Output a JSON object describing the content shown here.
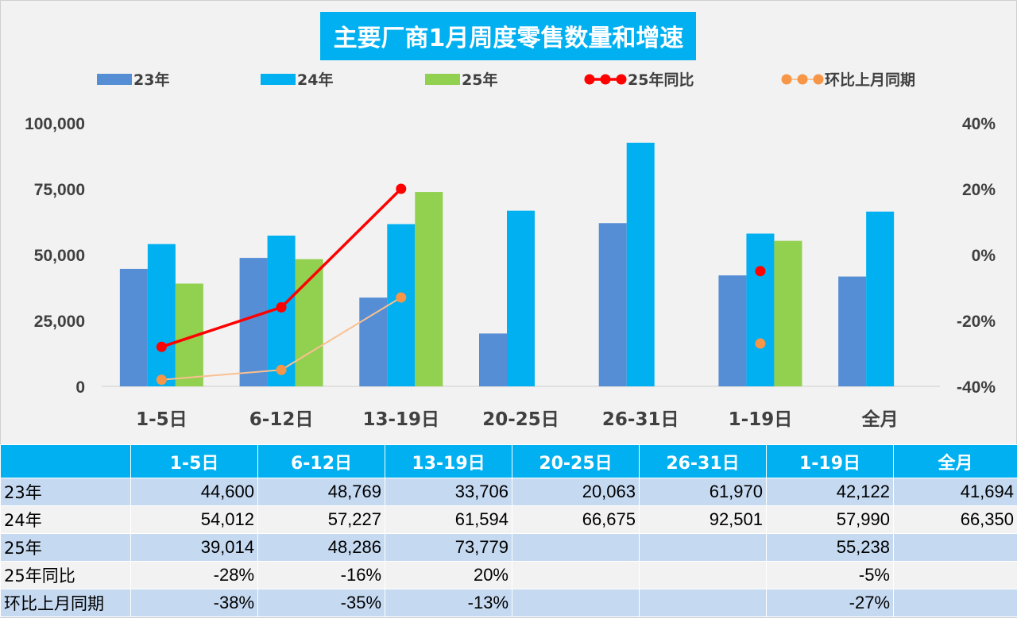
{
  "chart_data": {
    "type": "bar",
    "title": "主要厂商1月周度零售数量和增速",
    "categories": [
      "1-5日",
      "6-12日",
      "13-19日",
      "20-25日",
      "26-31日",
      "1-19日",
      "全月"
    ],
    "series": [
      {
        "name": "23年",
        "kind": "bar",
        "axis": "left",
        "color": "#558ed5",
        "values": [
          44600,
          48769,
          33706,
          20063,
          61970,
          42122,
          41694
        ]
      },
      {
        "name": "24年",
        "kind": "bar",
        "axis": "left",
        "color": "#00b0f0",
        "values": [
          54012,
          57227,
          61594,
          66675,
          92501,
          57990,
          66350
        ]
      },
      {
        "name": "25年",
        "kind": "bar",
        "axis": "left",
        "color": "#92d050",
        "values": [
          39014,
          48286,
          73779,
          null,
          null,
          55238,
          null
        ]
      },
      {
        "name": "25年同比",
        "kind": "line",
        "axis": "right",
        "color": "#ff0000",
        "values": [
          -28,
          -16,
          20,
          null,
          null,
          -5,
          null
        ]
      },
      {
        "name": "环比上月同期",
        "kind": "line",
        "axis": "right",
        "color": "#fac090",
        "markerColor": "#f79646",
        "values": [
          -38,
          -35,
          -13,
          null,
          null,
          -27,
          null
        ]
      }
    ],
    "ylim": [
      0,
      100000
    ],
    "yticks": [
      "100,000",
      "75,000",
      "50,000",
      "25,000",
      "0"
    ],
    "y2lim": [
      -40,
      40
    ],
    "y2ticks": [
      "40%",
      "20%",
      "0%",
      "-20%",
      "-40%"
    ],
    "legend": "top"
  },
  "table": {
    "header": [
      "",
      "1-5日",
      "6-12日",
      "13-19日",
      "20-25日",
      "26-31日",
      "1-19日",
      "全月"
    ],
    "rows": [
      {
        "label": "23年",
        "cells": [
          "44,600",
          "48,769",
          "33,706",
          "20,063",
          "61,970",
          "42,122",
          "41,694"
        ]
      },
      {
        "label": "24年",
        "cells": [
          "54,012",
          "57,227",
          "61,594",
          "66,675",
          "92,501",
          "57,990",
          "66,350"
        ]
      },
      {
        "label": "25年",
        "cells": [
          "39,014",
          "48,286",
          "73,779",
          "",
          "",
          "55,238",
          ""
        ]
      },
      {
        "label": "25年同比",
        "cells": [
          "-28%",
          "-16%",
          "20%",
          "",
          "",
          "-5%",
          ""
        ]
      },
      {
        "label": "环比上月同期",
        "cells": [
          "-38%",
          "-35%",
          "-13%",
          "",
          "",
          "-27%",
          ""
        ]
      }
    ]
  }
}
